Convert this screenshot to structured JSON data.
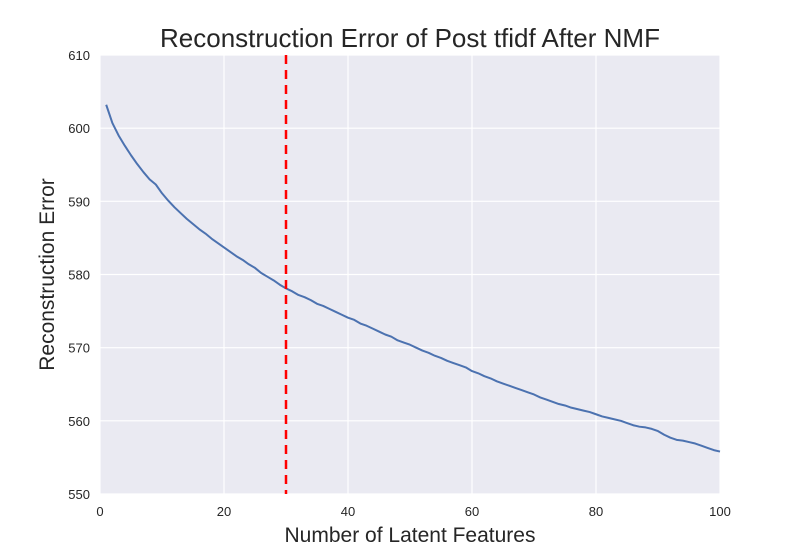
{
  "chart_data": {
    "type": "line",
    "title": "Reconstruction Error of Post tfidf After NMF",
    "xlabel": "Number of Latent Features",
    "ylabel": "Reconstruction Error",
    "xlim": [
      0,
      100
    ],
    "ylim": [
      550,
      610
    ],
    "xticks": [
      0,
      20,
      40,
      60,
      80,
      100
    ],
    "yticks": [
      550,
      560,
      570,
      580,
      590,
      600,
      610
    ],
    "grid": true,
    "style": {
      "plot_background": "#eaeaf2",
      "grid_color": "#ffffff",
      "line_color": "#4c72b0",
      "marker_line_color": "#ff0000"
    },
    "vertical_line": {
      "x": 30,
      "style": "dashed"
    },
    "series": [
      {
        "x": [
          1,
          2,
          3,
          4,
          5,
          6,
          7,
          8,
          9,
          10,
          11,
          12,
          13,
          14,
          15,
          16,
          17,
          18,
          19,
          20,
          21,
          22,
          23,
          24,
          25,
          26,
          27,
          28,
          29,
          30,
          31,
          32,
          33,
          34,
          35,
          36,
          37,
          38,
          39,
          40,
          41,
          42,
          43,
          44,
          45,
          46,
          47,
          48,
          49,
          50,
          51,
          52,
          53,
          54,
          55,
          56,
          57,
          58,
          59,
          60,
          61,
          62,
          63,
          64,
          65,
          66,
          67,
          68,
          69,
          70,
          71,
          72,
          73,
          74,
          75,
          76,
          77,
          78,
          79,
          80,
          81,
          82,
          83,
          84,
          85,
          86,
          87,
          88,
          89,
          90,
          91,
          92,
          93,
          94,
          95,
          96,
          97,
          98,
          99,
          100
        ],
        "values": [
          603.2,
          600.7,
          599.0,
          597.6,
          596.3,
          595.1,
          594.0,
          593.0,
          592.3,
          591.1,
          590.1,
          589.2,
          588.4,
          587.6,
          586.9,
          586.2,
          585.6,
          584.9,
          584.3,
          583.7,
          583.1,
          582.5,
          582.0,
          581.4,
          580.9,
          580.2,
          579.7,
          579.2,
          578.6,
          578.1,
          577.7,
          577.2,
          576.9,
          576.5,
          576.0,
          575.7,
          575.3,
          574.9,
          574.5,
          574.1,
          573.8,
          573.3,
          573.0,
          572.6,
          572.2,
          571.8,
          571.5,
          571.0,
          570.7,
          570.4,
          570.0,
          569.6,
          569.3,
          568.9,
          568.6,
          568.2,
          567.9,
          567.6,
          567.3,
          566.8,
          566.5,
          566.1,
          565.8,
          565.4,
          565.1,
          564.8,
          564.5,
          564.2,
          563.9,
          563.6,
          563.2,
          562.9,
          562.6,
          562.3,
          562.1,
          561.8,
          561.6,
          561.4,
          561.2,
          560.9,
          560.6,
          560.4,
          560.2,
          560.0,
          559.7,
          559.4,
          559.2,
          559.1,
          558.9,
          558.6,
          558.1,
          557.7,
          557.4,
          557.3,
          557.1,
          556.9,
          556.6,
          556.3,
          556.0,
          555.8
        ]
      }
    ]
  }
}
